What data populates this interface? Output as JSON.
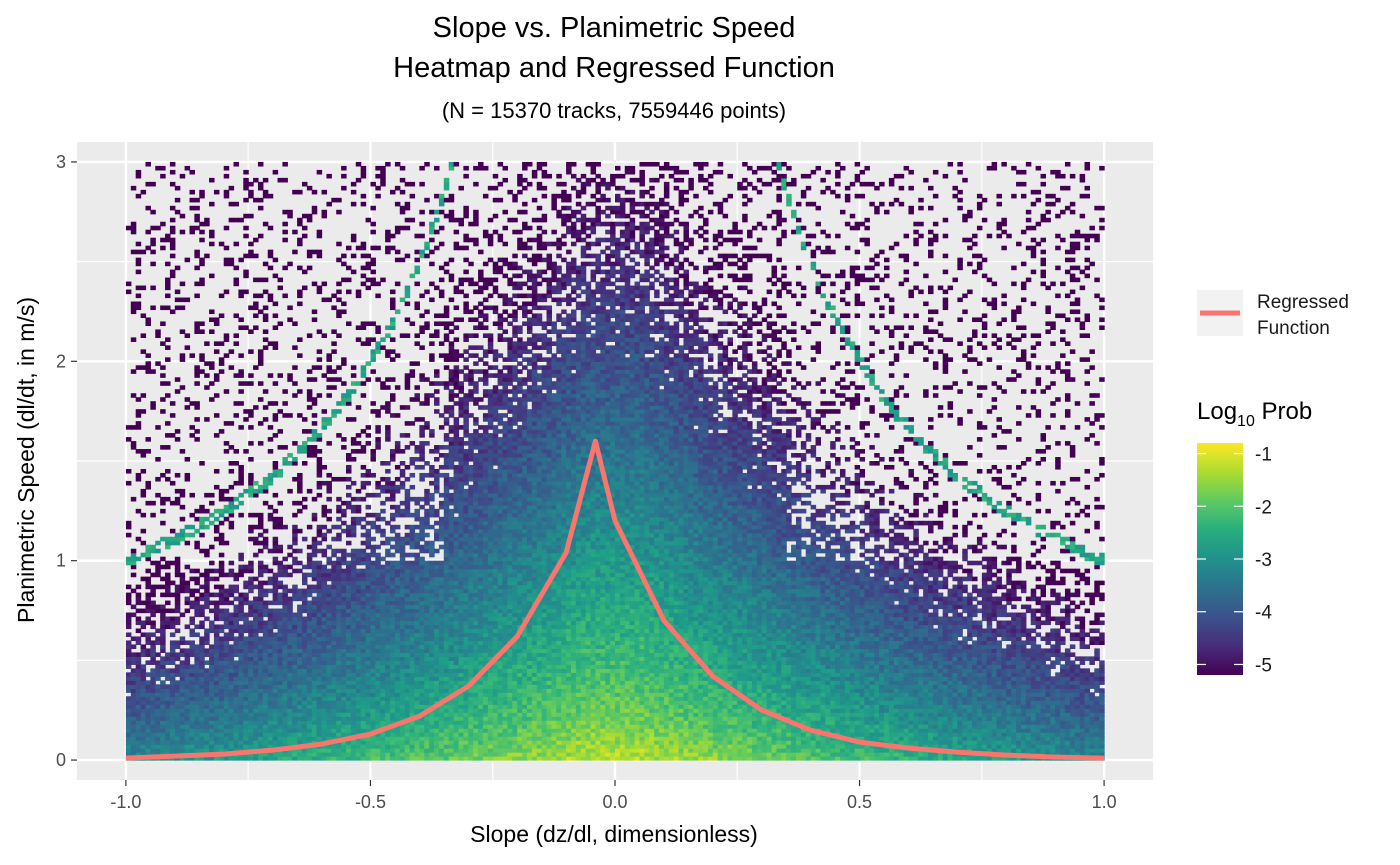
{
  "chart_data": {
    "type": "heatmap",
    "title_lines": [
      "Slope vs. Planimetric Speed",
      "Heatmap and Regressed Function"
    ],
    "subtitle": "(N = 15370 tracks, 7559446 points)",
    "xlabel": "Slope (dz/dl, dimensionless)",
    "ylabel": "Planimetric Speed (dl/dt, in m/s)",
    "xlim": [
      -1.1,
      1.1
    ],
    "ylim": [
      -0.1,
      3.1
    ],
    "x_ticks": [
      -1.0,
      -0.5,
      0.0,
      0.5,
      1.0
    ],
    "x_tick_labels": [
      "-1.0",
      "-0.5",
      "0.0",
      "0.5",
      "1.0"
    ],
    "y_ticks": [
      0,
      1,
      2,
      3
    ],
    "y_tick_labels": [
      "0",
      "1",
      "2",
      "3"
    ],
    "heatmap": {
      "x_range": [
        -1.0,
        1.0
      ],
      "y_range": [
        0,
        3.0
      ],
      "colorscale": "viridis",
      "color_range": [
        -5.2,
        -0.8
      ]
    },
    "regressed_function": {
      "name_lines": [
        "Regressed",
        "Function"
      ],
      "color": "#F8766D",
      "peak_x": -0.04,
      "peak_y": 1.6,
      "points": [
        [
          -1.0,
          0.01
        ],
        [
          -0.9,
          0.02
        ],
        [
          -0.8,
          0.03
        ],
        [
          -0.7,
          0.05
        ],
        [
          -0.6,
          0.08
        ],
        [
          -0.5,
          0.13
        ],
        [
          -0.4,
          0.22
        ],
        [
          -0.3,
          0.37
        ],
        [
          -0.2,
          0.62
        ],
        [
          -0.1,
          1.04
        ],
        [
          -0.04,
          1.6
        ],
        [
          0.0,
          1.2
        ],
        [
          0.1,
          0.7
        ],
        [
          0.2,
          0.42
        ],
        [
          0.3,
          0.25
        ],
        [
          0.4,
          0.15
        ],
        [
          0.5,
          0.09
        ],
        [
          0.6,
          0.06
        ],
        [
          0.7,
          0.04
        ],
        [
          0.8,
          0.025
        ],
        [
          0.9,
          0.015
        ],
        [
          1.0,
          0.01
        ]
      ]
    },
    "colorbar": {
      "title_base": "Log",
      "title_sub": "10",
      "title_rest": " Prob",
      "ticks": [
        -1,
        -2,
        -3,
        -4,
        -5
      ],
      "tick_labels": [
        "-1",
        "-2",
        "-3",
        "-4",
        "-5"
      ]
    }
  }
}
